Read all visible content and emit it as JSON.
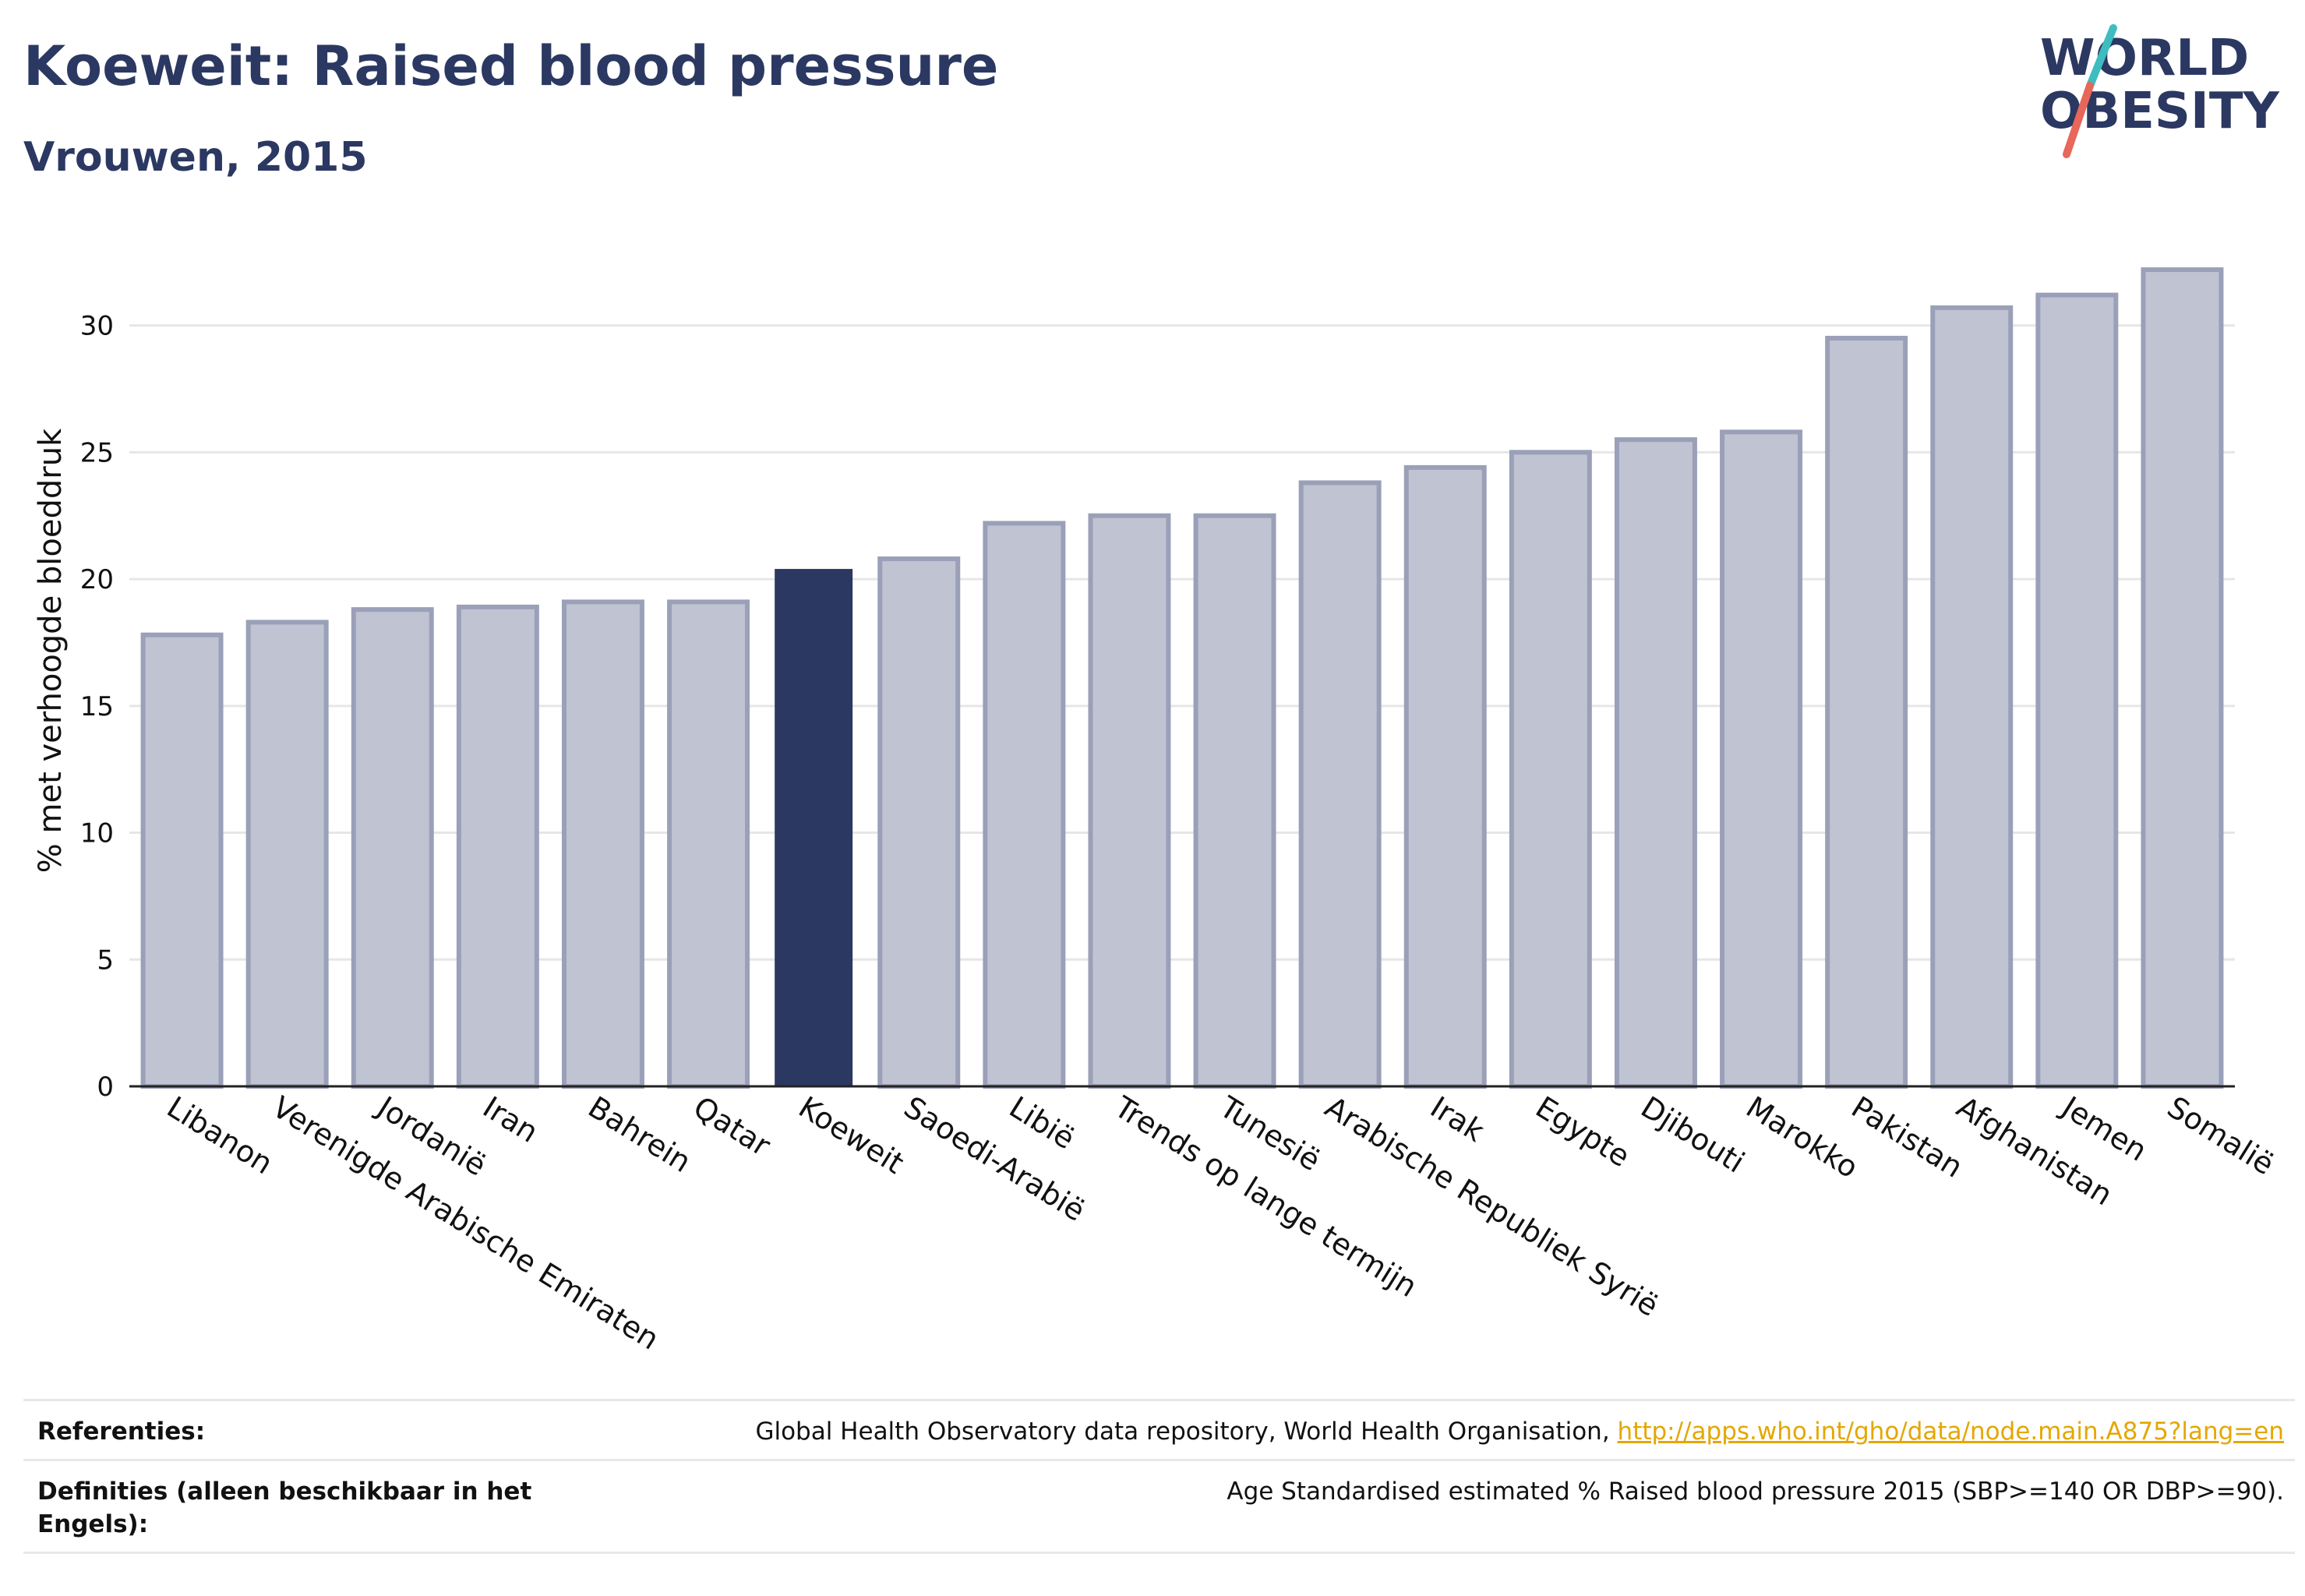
{
  "header": {
    "title": "Koeweit: Raised blood pressure",
    "subtitle": "Vrouwen, 2015"
  },
  "logo": {
    "line1": "WORLD",
    "line2": "OBESITY",
    "accent_colors": [
      "#3fbcc0",
      "#e8665a"
    ],
    "text_color": "#2b3862"
  },
  "chart_data": {
    "type": "bar",
    "title": "Koeweit: Raised blood pressure",
    "subtitle": "Vrouwen, 2015",
    "ylabel": "% met verhoogde bloeddruk",
    "xlabel": "",
    "ylim": [
      0,
      33
    ],
    "yticks": [
      0,
      5,
      10,
      15,
      20,
      25,
      30
    ],
    "grid": true,
    "highlight_category": "Koeweit",
    "colors": {
      "bar": "#c0c3d1",
      "bar_stroke": "#9aa0b8",
      "highlight": "#2b3862",
      "grid": "#e6e6e6",
      "axis": "#222222"
    },
    "categories": [
      "Libanon",
      "Verenigde Arabische Emiraten",
      "Jordanië",
      "Iran",
      "Bahrein",
      "Qatar",
      "Koeweit",
      "Saoedi-Arabië",
      "Libië",
      "Trends op lange termijn",
      "Tunesië",
      "Arabische Republiek Syrië",
      "Irak",
      "Egypte",
      "Djibouti",
      "Marokko",
      "Pakistan",
      "Afghanistan",
      "Jemen",
      "Somalië"
    ],
    "values": [
      17.8,
      18.3,
      18.8,
      18.9,
      19.1,
      19.1,
      20.4,
      20.8,
      22.2,
      22.5,
      22.5,
      23.8,
      24.4,
      25.0,
      25.5,
      25.8,
      29.5,
      30.7,
      31.2,
      32.2
    ]
  },
  "footer": {
    "references_label": "Referenties:",
    "references_text": "Global Health Observatory data repository, World Health Organisation, ",
    "references_link": "http://apps.who.int/gho/data/node.main.A875?lang=en",
    "definitions_label": "Definities (alleen beschikbaar in het Engels):",
    "definitions_text": "Age Standardised estimated % Raised blood pressure 2015 (SBP>=140 OR DBP>=90)."
  }
}
